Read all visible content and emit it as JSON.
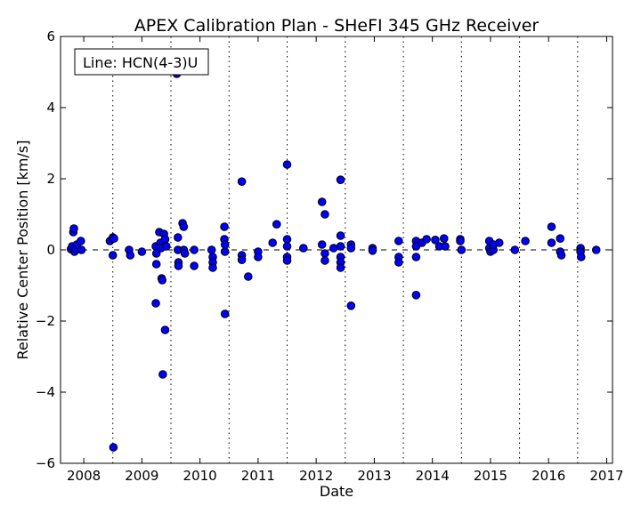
{
  "chart_data": {
    "type": "scatter",
    "title": "APEX Calibration Plan - SHeFI 345 GHz Receiver",
    "xlabel": "Date",
    "ylabel": "Relative Center Position [km/s]",
    "legend_box": "Line: HCN(4-3)U",
    "legend_position": "top-left",
    "xlim": [
      2007.6,
      2017.1
    ],
    "ylim": [
      -6,
      6
    ],
    "x_ticks": [
      2008,
      2009,
      2010,
      2011,
      2012,
      2013,
      2014,
      2015,
      2016,
      2017
    ],
    "x_tick_labels": [
      "2008",
      "2009",
      "2010",
      "2011",
      "2012",
      "2013",
      "2014",
      "2015",
      "2016",
      "2017"
    ],
    "y_ticks": [
      -6,
      -4,
      -2,
      0,
      2,
      4,
      6
    ],
    "y_tick_labels": [
      "−6",
      "−4",
      "−2",
      "0",
      "2",
      "4",
      "6"
    ],
    "vertical_dotted_lines": [
      2008.5,
      2009.5,
      2010.5,
      2011.5,
      2012.5,
      2013.5,
      2014.5,
      2015.5,
      2016.5
    ],
    "reference_line_y": 0,
    "marker_color": "#0000ff",
    "grid": false,
    "points": [
      {
        "x": 2007.78,
        "y": 0.02
      },
      {
        "x": 2007.8,
        "y": 0.1
      },
      {
        "x": 2007.82,
        "y": 0.5
      },
      {
        "x": 2007.83,
        "y": 0.6
      },
      {
        "x": 2007.84,
        "y": -0.05
      },
      {
        "x": 2007.86,
        "y": 0.05
      },
      {
        "x": 2007.88,
        "y": 0.15
      },
      {
        "x": 2007.95,
        "y": 0.25
      },
      {
        "x": 2007.96,
        "y": 0.0
      },
      {
        "x": 2008.45,
        "y": 0.25
      },
      {
        "x": 2008.5,
        "y": 0.35
      },
      {
        "x": 2008.52,
        "y": 0.32
      },
      {
        "x": 2008.5,
        "y": -0.15
      },
      {
        "x": 2008.51,
        "y": -5.55
      },
      {
        "x": 2008.78,
        "y": 0.0
      },
      {
        "x": 2008.8,
        "y": -0.15
      },
      {
        "x": 2009.0,
        "y": -0.05
      },
      {
        "x": 2009.24,
        "y": 0.1
      },
      {
        "x": 2009.25,
        "y": -0.1
      },
      {
        "x": 2009.25,
        "y": -0.4
      },
      {
        "x": 2009.24,
        "y": -1.5
      },
      {
        "x": 2009.3,
        "y": 0.5
      },
      {
        "x": 2009.32,
        "y": 0.2
      },
      {
        "x": 2009.33,
        "y": 0.05
      },
      {
        "x": 2009.34,
        "y": -0.8
      },
      {
        "x": 2009.35,
        "y": -0.85
      },
      {
        "x": 2009.36,
        "y": -3.5
      },
      {
        "x": 2009.4,
        "y": -2.25
      },
      {
        "x": 2009.38,
        "y": 0.45
      },
      {
        "x": 2009.4,
        "y": 0.3
      },
      {
        "x": 2009.42,
        "y": 0.1
      },
      {
        "x": 2009.6,
        "y": 4.95
      },
      {
        "x": 2009.62,
        "y": 0.35
      },
      {
        "x": 2009.62,
        "y": 0.0
      },
      {
        "x": 2009.63,
        "y": -0.35
      },
      {
        "x": 2009.63,
        "y": -0.45
      },
      {
        "x": 2009.7,
        "y": 0.75
      },
      {
        "x": 2009.72,
        "y": 0.65
      },
      {
        "x": 2009.72,
        "y": 0.0
      },
      {
        "x": 2009.74,
        "y": -0.1
      },
      {
        "x": 2009.9,
        "y": 0.0
      },
      {
        "x": 2009.9,
        "y": -0.45
      },
      {
        "x": 2010.2,
        "y": 0.0
      },
      {
        "x": 2010.22,
        "y": -0.2
      },
      {
        "x": 2010.22,
        "y": -0.35
      },
      {
        "x": 2010.22,
        "y": -0.5
      },
      {
        "x": 2010.42,
        "y": 0.65
      },
      {
        "x": 2010.42,
        "y": 0.3
      },
      {
        "x": 2010.43,
        "y": 0.15
      },
      {
        "x": 2010.43,
        "y": -0.05
      },
      {
        "x": 2010.43,
        "y": -1.8
      },
      {
        "x": 2010.72,
        "y": 1.92
      },
      {
        "x": 2010.72,
        "y": -0.15
      },
      {
        "x": 2010.72,
        "y": -0.28
      },
      {
        "x": 2010.83,
        "y": -0.75
      },
      {
        "x": 2011.0,
        "y": -0.05
      },
      {
        "x": 2011.0,
        "y": -0.2
      },
      {
        "x": 2011.25,
        "y": 0.2
      },
      {
        "x": 2011.32,
        "y": 0.72
      },
      {
        "x": 2011.5,
        "y": 2.4
      },
      {
        "x": 2011.5,
        "y": 0.3
      },
      {
        "x": 2011.5,
        "y": 0.1
      },
      {
        "x": 2011.5,
        "y": -0.2
      },
      {
        "x": 2011.5,
        "y": -0.3
      },
      {
        "x": 2011.78,
        "y": 0.05
      },
      {
        "x": 2012.1,
        "y": 1.35
      },
      {
        "x": 2012.15,
        "y": 1.0
      },
      {
        "x": 2012.1,
        "y": 0.15
      },
      {
        "x": 2012.15,
        "y": -0.1
      },
      {
        "x": 2012.15,
        "y": -0.3
      },
      {
        "x": 2012.3,
        "y": 0.05
      },
      {
        "x": 2012.42,
        "y": 1.97
      },
      {
        "x": 2012.42,
        "y": 0.4
      },
      {
        "x": 2012.42,
        "y": 0.1
      },
      {
        "x": 2012.42,
        "y": -0.2
      },
      {
        "x": 2012.42,
        "y": -0.35
      },
      {
        "x": 2012.42,
        "y": -0.5
      },
      {
        "x": 2012.6,
        "y": 0.15
      },
      {
        "x": 2012.6,
        "y": 0.05
      },
      {
        "x": 2012.6,
        "y": -1.57
      },
      {
        "x": 2012.97,
        "y": 0.05
      },
      {
        "x": 2012.97,
        "y": -0.02
      },
      {
        "x": 2013.42,
        "y": 0.25
      },
      {
        "x": 2013.42,
        "y": -0.2
      },
      {
        "x": 2013.42,
        "y": -0.35
      },
      {
        "x": 2013.72,
        "y": 0.25
      },
      {
        "x": 2013.72,
        "y": 0.1
      },
      {
        "x": 2013.72,
        "y": -0.2
      },
      {
        "x": 2013.72,
        "y": -1.27
      },
      {
        "x": 2013.82,
        "y": 0.2
      },
      {
        "x": 2013.9,
        "y": 0.3
      },
      {
        "x": 2014.05,
        "y": 0.28
      },
      {
        "x": 2014.12,
        "y": 0.1
      },
      {
        "x": 2014.2,
        "y": 0.32
      },
      {
        "x": 2014.22,
        "y": 0.1
      },
      {
        "x": 2014.48,
        "y": 0.3
      },
      {
        "x": 2014.48,
        "y": 0.25
      },
      {
        "x": 2014.5,
        "y": 0.0
      },
      {
        "x": 2014.98,
        "y": 0.25
      },
      {
        "x": 2014.98,
        "y": 0.05
      },
      {
        "x": 2015.0,
        "y": -0.05
      },
      {
        "x": 2015.05,
        "y": 0.0
      },
      {
        "x": 2015.05,
        "y": 0.15
      },
      {
        "x": 2015.15,
        "y": 0.2
      },
      {
        "x": 2015.42,
        "y": 0.0
      },
      {
        "x": 2015.6,
        "y": 0.25
      },
      {
        "x": 2016.05,
        "y": 0.65
      },
      {
        "x": 2016.05,
        "y": 0.2
      },
      {
        "x": 2016.2,
        "y": 0.32
      },
      {
        "x": 2016.2,
        "y": -0.05
      },
      {
        "x": 2016.22,
        "y": -0.15
      },
      {
        "x": 2016.55,
        "y": 0.05
      },
      {
        "x": 2016.55,
        "y": -0.05
      },
      {
        "x": 2016.56,
        "y": -0.2
      },
      {
        "x": 2016.82,
        "y": 0.0
      }
    ]
  }
}
